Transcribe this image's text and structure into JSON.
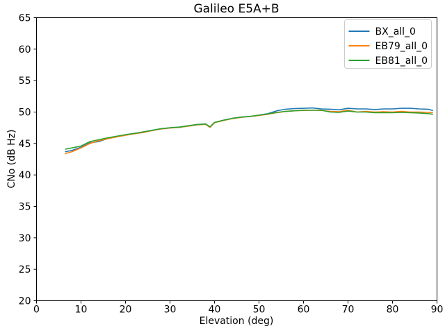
{
  "figure": {
    "background": "#ffffff",
    "spine_color": "#000000",
    "tick_color": "#000000"
  },
  "chart_data": {
    "type": "line",
    "title": "Galileo E5A+B",
    "xlabel": "Elevation (deg)",
    "ylabel": "CNo (dB Hz)",
    "xlim": [
      0,
      90
    ],
    "ylim": [
      20,
      65
    ],
    "xticks": [
      0,
      10,
      20,
      30,
      40,
      50,
      60,
      70,
      80,
      90
    ],
    "yticks": [
      20,
      25,
      30,
      35,
      40,
      45,
      50,
      55,
      60,
      65
    ],
    "grid": false,
    "legend_position": "upper right",
    "x": [
      6.5,
      8,
      10,
      12,
      14,
      16,
      18,
      20,
      22,
      24,
      26,
      28,
      30,
      32,
      34,
      36,
      38,
      39,
      40,
      42,
      44,
      46,
      48,
      50,
      52,
      54,
      56,
      58,
      60,
      62,
      64,
      66,
      68,
      70,
      72,
      74,
      76,
      78,
      80,
      82,
      84,
      86,
      88,
      89
    ],
    "series": [
      {
        "name": "BX_all_0",
        "color": "#1f77b4",
        "values": [
          43.7,
          43.9,
          44.4,
          45.1,
          45.3,
          45.8,
          46.1,
          46.35,
          46.6,
          46.8,
          47.1,
          47.35,
          47.5,
          47.6,
          47.8,
          48.0,
          48.1,
          47.6,
          48.35,
          48.7,
          49.0,
          49.2,
          49.3,
          49.5,
          49.75,
          50.2,
          50.45,
          50.55,
          50.6,
          50.65,
          50.5,
          50.45,
          50.35,
          50.6,
          50.5,
          50.5,
          50.4,
          50.5,
          50.5,
          50.6,
          50.6,
          50.5,
          50.45,
          50.25
        ]
      },
      {
        "name": "EB79_all_0",
        "color": "#ff7f0e",
        "values": [
          43.4,
          43.7,
          44.3,
          45.0,
          45.45,
          45.75,
          46.05,
          46.3,
          46.55,
          46.75,
          47.05,
          47.3,
          47.45,
          47.55,
          47.75,
          47.95,
          48.05,
          47.55,
          48.3,
          48.65,
          48.95,
          49.15,
          49.3,
          49.45,
          49.65,
          49.9,
          50.1,
          50.2,
          50.25,
          50.3,
          50.25,
          50.1,
          50.05,
          50.3,
          50.0,
          50.1,
          50.0,
          50.05,
          50.0,
          50.1,
          50.0,
          50.0,
          49.95,
          49.9
        ]
      },
      {
        "name": "EB81_all_0",
        "color": "#2ca02c",
        "values": [
          44.1,
          44.3,
          44.6,
          45.3,
          45.6,
          45.9,
          46.15,
          46.4,
          46.6,
          46.85,
          47.1,
          47.35,
          47.5,
          47.6,
          47.8,
          48.0,
          48.1,
          47.65,
          48.35,
          48.7,
          49.0,
          49.2,
          49.3,
          49.5,
          49.7,
          49.95,
          50.1,
          50.2,
          50.3,
          50.3,
          50.3,
          50.0,
          49.95,
          50.15,
          50.0,
          50.0,
          49.9,
          49.9,
          49.9,
          49.95,
          49.9,
          49.85,
          49.75,
          49.65
        ]
      }
    ]
  }
}
